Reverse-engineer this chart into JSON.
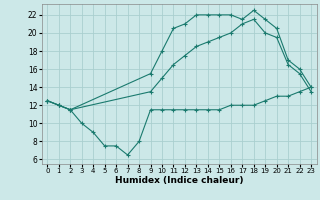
{
  "xlabel": "Humidex (Indice chaleur)",
  "bg_color": "#cce8e8",
  "grid_color": "#aacfcf",
  "line_color": "#1a7a6e",
  "xlim": [
    -0.5,
    23.5
  ],
  "ylim": [
    5.5,
    23.2
  ],
  "yticks": [
    6,
    8,
    10,
    12,
    14,
    16,
    18,
    20,
    22
  ],
  "xticks": [
    0,
    1,
    2,
    3,
    4,
    5,
    6,
    7,
    8,
    9,
    10,
    11,
    12,
    13,
    14,
    15,
    16,
    17,
    18,
    19,
    20,
    21,
    22,
    23
  ],
  "line1_x": [
    0,
    1,
    2,
    3,
    4,
    5,
    6,
    7,
    8,
    9,
    10,
    11,
    12,
    13,
    14,
    15,
    16,
    17,
    18,
    19,
    20,
    21,
    22,
    23
  ],
  "line1_y": [
    12.5,
    12.0,
    11.5,
    10.0,
    9.0,
    7.5,
    7.5,
    6.5,
    8.0,
    11.5,
    11.5,
    11.5,
    11.5,
    11.5,
    11.5,
    11.5,
    12.0,
    12.0,
    12.0,
    12.5,
    13.0,
    13.0,
    13.5,
    14.0
  ],
  "line2_x": [
    0,
    1,
    2,
    9,
    10,
    11,
    12,
    13,
    14,
    15,
    16,
    17,
    18,
    19,
    20,
    21,
    22,
    23
  ],
  "line2_y": [
    12.5,
    12.0,
    11.5,
    15.5,
    18.0,
    20.5,
    21.0,
    22.0,
    22.0,
    22.0,
    22.0,
    21.5,
    22.5,
    21.5,
    20.5,
    17.0,
    16.0,
    14.0
  ],
  "line3_x": [
    0,
    1,
    2,
    9,
    10,
    11,
    12,
    13,
    14,
    15,
    16,
    17,
    18,
    19,
    20,
    21,
    22,
    23
  ],
  "line3_y": [
    12.5,
    12.0,
    11.5,
    13.5,
    15.0,
    16.5,
    17.5,
    18.5,
    19.0,
    19.5,
    20.0,
    21.0,
    21.5,
    20.0,
    19.5,
    16.5,
    15.5,
    13.5
  ]
}
